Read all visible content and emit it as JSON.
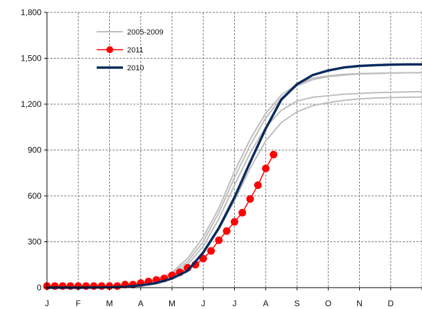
{
  "chart_data": {
    "type": "line",
    "title": "",
    "xlabel": "",
    "ylabel": "",
    "ylim": [
      0,
      1800
    ],
    "yticks": [
      0,
      300,
      600,
      900,
      1200,
      1500,
      1800
    ],
    "ytick_labels": [
      "0",
      "300",
      "600",
      "900",
      "1,200",
      "1,500",
      "1,800"
    ],
    "xlim": [
      0,
      12
    ],
    "xtick_labels": [
      "J",
      "F",
      "M",
      "A",
      "M",
      "J",
      "J",
      "A",
      "S",
      "O",
      "N",
      "D"
    ],
    "grid": true,
    "legend_position": "top-left",
    "series": [
      {
        "name": "2005-2009",
        "kind": "band",
        "color": "#bdbdbd",
        "lines": [
          {
            "x": [
              0,
              1,
              2,
              3,
              3.5,
              4,
              4.5,
              5,
              5.5,
              6,
              6.5,
              7,
              7.5,
              8,
              8.5,
              9,
              9.5,
              10,
              10.5,
              11,
              11.5,
              12
            ],
            "y": [
              0,
              0,
              2,
              25,
              50,
              100,
              190,
              330,
              520,
              760,
              970,
              1140,
              1260,
              1330,
              1370,
              1385,
              1395,
              1400,
              1402,
              1404,
              1405,
              1406
            ]
          },
          {
            "x": [
              0,
              1,
              2,
              3,
              3.5,
              4,
              4.5,
              5,
              5.5,
              6,
              6.5,
              7,
              7.5,
              8,
              8.5,
              9,
              9.5,
              10,
              10.5,
              11,
              11.5,
              12
            ],
            "y": [
              0,
              0,
              2,
              20,
              45,
              90,
              170,
              300,
              490,
              720,
              930,
              1110,
              1240,
              1320,
              1360,
              1380,
              1390,
              1398,
              1400,
              1403,
              1405,
              1406
            ]
          },
          {
            "x": [
              0,
              1,
              2,
              3,
              3.5,
              4,
              4.5,
              5,
              5.5,
              6,
              6.5,
              7,
              7.5,
              8,
              8.5,
              9,
              9.5,
              10,
              10.5,
              11,
              11.5,
              12
            ],
            "y": [
              0,
              0,
              2,
              18,
              40,
              80,
              150,
              270,
              450,
              670,
              880,
              1050,
              1160,
              1220,
              1245,
              1255,
              1265,
              1270,
              1275,
              1278,
              1280,
              1282
            ]
          },
          {
            "x": [
              0,
              1,
              2,
              3,
              3.5,
              4,
              4.5,
              5,
              5.5,
              6,
              6.5,
              7,
              7.5,
              8,
              8.5,
              9,
              9.5,
              10,
              10.5,
              11,
              11.5,
              12
            ],
            "y": [
              0,
              0,
              1,
              10,
              25,
              55,
              110,
              220,
              380,
              570,
              780,
              960,
              1080,
              1150,
              1190,
              1210,
              1225,
              1235,
              1240,
              1243,
              1245,
              1246
            ]
          }
        ]
      },
      {
        "name": "2011",
        "kind": "markers",
        "color": "#ff0000",
        "x": [
          0,
          0.25,
          0.5,
          0.75,
          1,
          1.25,
          1.5,
          1.75,
          2,
          2.25,
          2.5,
          2.75,
          3,
          3.25,
          3.5,
          3.75,
          4,
          4.25,
          4.5,
          4.75,
          5,
          5.25,
          5.5,
          5.75,
          6,
          6.25,
          6.5,
          6.75,
          7,
          7.25
        ],
        "y": [
          10,
          10,
          10,
          10,
          10,
          10,
          10,
          10,
          10,
          10,
          20,
          20,
          30,
          40,
          50,
          60,
          80,
          100,
          130,
          150,
          190,
          240,
          310,
          370,
          430,
          490,
          580,
          670,
          780,
          870
        ]
      },
      {
        "name": "2010",
        "kind": "line",
        "color": "#0a2a5e",
        "x": [
          0,
          1,
          2,
          2.5,
          3,
          3.5,
          4,
          4.5,
          5,
          5.5,
          6,
          6.5,
          7,
          7.5,
          8,
          8.5,
          9,
          9.5,
          10,
          10.5,
          11,
          11.5,
          12
        ],
        "y": [
          0,
          0,
          2,
          5,
          15,
          30,
          60,
          110,
          230,
          390,
          590,
          820,
          1040,
          1230,
          1330,
          1390,
          1420,
          1440,
          1450,
          1455,
          1458,
          1460,
          1460
        ]
      }
    ]
  }
}
